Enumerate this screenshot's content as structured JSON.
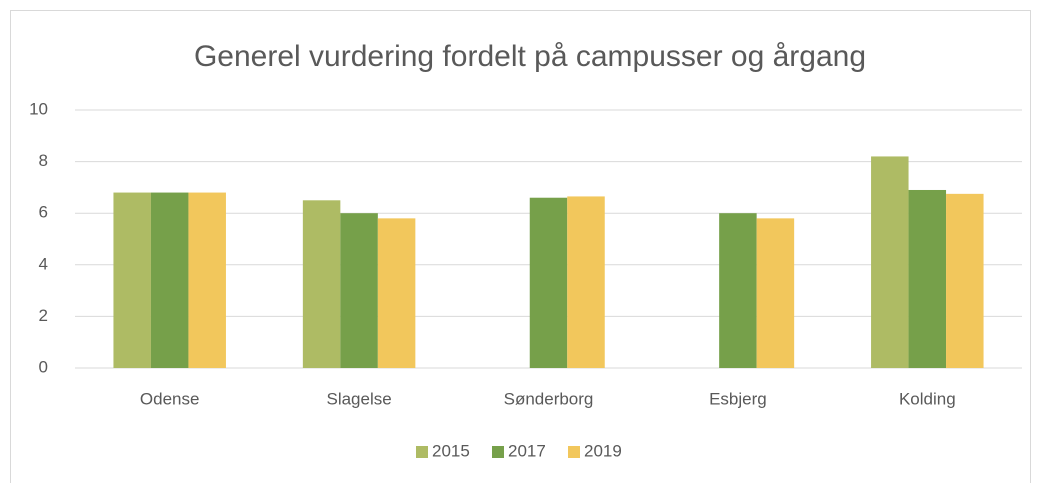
{
  "chart_data": {
    "type": "bar",
    "title": "Generel vurdering fordelt på campusser og årgang",
    "categories": [
      "Odense",
      "Slagelse",
      "Sønderborg",
      "Esbjerg",
      "Kolding"
    ],
    "series": [
      {
        "name": "2015",
        "color": "#aebb64",
        "values": [
          6.8,
          6.5,
          null,
          null,
          8.2
        ]
      },
      {
        "name": "2017",
        "color": "#76a04a",
        "values": [
          6.8,
          6.0,
          6.6,
          6.0,
          6.9
        ]
      },
      {
        "name": "2019",
        "color": "#f2c75c",
        "values": [
          6.8,
          5.8,
          6.65,
          5.8,
          6.75
        ]
      }
    ],
    "ylim": [
      0,
      10
    ],
    "yticks": [
      0,
      2,
      4,
      6,
      8,
      10
    ],
    "grid": true,
    "legend": "bottom"
  }
}
